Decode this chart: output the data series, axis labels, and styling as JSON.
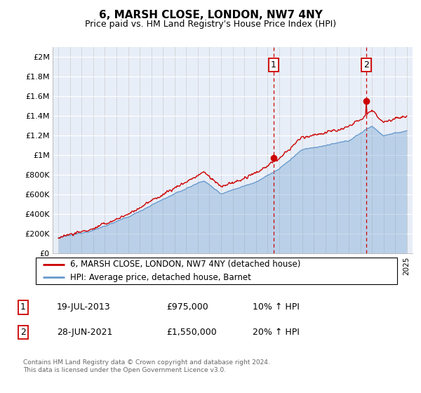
{
  "title": "6, MARSH CLOSE, LONDON, NW7 4NY",
  "subtitle": "Price paid vs. HM Land Registry's House Price Index (HPI)",
  "legend_line1": "6, MARSH CLOSE, LONDON, NW7 4NY (detached house)",
  "legend_line2": "HPI: Average price, detached house, Barnet",
  "annotation1_label": "1",
  "annotation1_date": "19-JUL-2013",
  "annotation1_price": "£975,000",
  "annotation1_pct": "10% ↑ HPI",
  "annotation1_year": 2013.54,
  "annotation1_value": 975000,
  "annotation2_label": "2",
  "annotation2_date": "28-JUN-2021",
  "annotation2_price": "£1,550,000",
  "annotation2_pct": "20% ↑ HPI",
  "annotation2_year": 2021.49,
  "annotation2_value": 1550000,
  "footer": "Contains HM Land Registry data © Crown copyright and database right 2024.\nThis data is licensed under the Open Government Licence v3.0.",
  "price_color": "#cc0000",
  "hpi_color": "#6699cc",
  "background_color": "#e8eef8",
  "ylim": [
    0,
    2100000
  ],
  "yticks": [
    0,
    200000,
    400000,
    600000,
    800000,
    1000000,
    1200000,
    1400000,
    1600000,
    1800000,
    2000000
  ],
  "ytick_labels": [
    "£0",
    "£200K",
    "£400K",
    "£600K",
    "£800K",
    "£1M",
    "£1.2M",
    "£1.4M",
    "£1.6M",
    "£1.8M",
    "£2M"
  ],
  "xmin": 1994.5,
  "xmax": 2025.5
}
